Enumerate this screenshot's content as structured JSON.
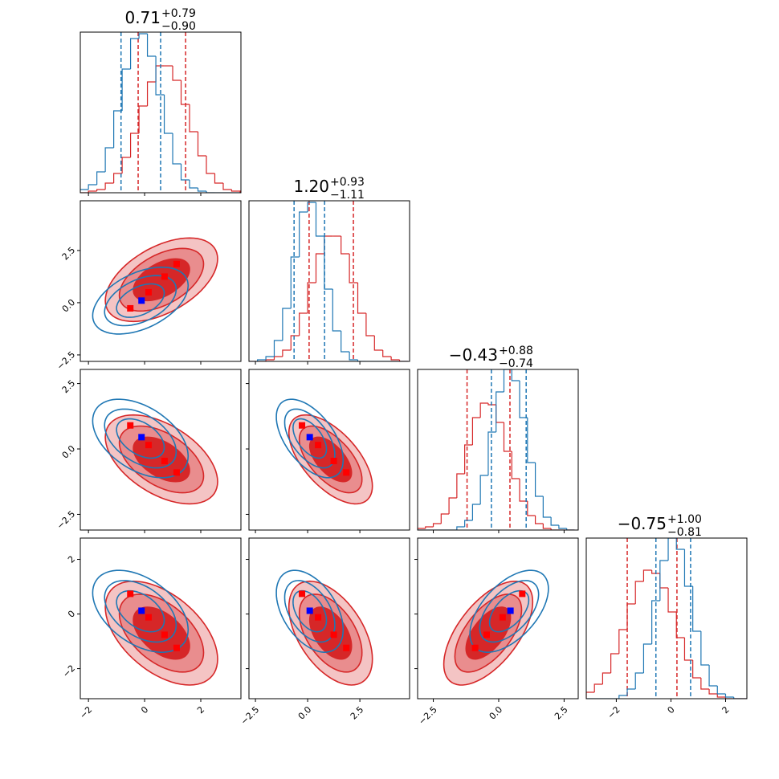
{
  "chart_data": {
    "type": "corner",
    "params": [
      {
        "title": {
          "value": "0.71",
          "plus": "+0.79",
          "minus": "−0.90"
        },
        "lim": [
          -2.29,
          3.43
        ],
        "ticks": [
          {
            "value": -2,
            "label": "−2"
          },
          0,
          2
        ],
        "bins": [
          -2.3,
          -2.0,
          -1.7,
          -1.4,
          -1.1,
          -0.8,
          -0.5,
          -0.2,
          0.1,
          0.4,
          0.7,
          1.0,
          1.3,
          1.6,
          1.9,
          2.2,
          2.5,
          2.8,
          3.1,
          3.4
        ]
      },
      {
        "title": {
          "value": "1.20",
          "plus": "+0.93",
          "minus": "−1.11"
        },
        "lim": [
          -2.81,
          4.88
        ],
        "ticks": [
          {
            "value": -2.5,
            "label": "−2.5"
          },
          {
            "value": 0,
            "label": "0.0"
          },
          2.5
        ],
        "bins": [
          -2.8,
          -2.4,
          -2.0,
          -1.6,
          -1.2,
          -0.8,
          -0.4,
          0.0,
          0.4,
          0.8,
          1.2,
          1.6,
          2.0,
          2.4,
          2.8,
          3.2,
          3.6,
          4.0,
          4.4,
          4.8
        ]
      },
      {
        "title": {
          "value": "−0.43",
          "plus": "+0.88",
          "minus": "−0.74"
        },
        "lim": [
          -3.1,
          3.04
        ],
        "ticks": [
          {
            "value": -2.5,
            "label": "−2.5"
          },
          {
            "value": 0,
            "label": "0.0"
          },
          2.5
        ],
        "bins": [
          -3.1,
          -2.8,
          -2.5,
          -2.2,
          -1.9,
          -1.6,
          -1.3,
          -1.0,
          -0.7,
          -0.4,
          -0.1,
          0.2,
          0.5,
          0.8,
          1.1,
          1.4,
          1.7,
          2.0,
          2.3,
          2.6,
          2.9
        ]
      },
      {
        "title": {
          "value": "−0.75",
          "plus": "+1.00",
          "minus": "−0.81"
        },
        "lim": [
          -3.1,
          2.78
        ],
        "ticks": [
          {
            "value": -2,
            "label": "−2"
          },
          0,
          2
        ],
        "bins": [
          -3.1,
          -2.8,
          -2.5,
          -2.2,
          -1.9,
          -1.6,
          -1.3,
          -1.0,
          -0.7,
          -0.4,
          -0.1,
          0.2,
          0.5,
          0.8,
          1.1,
          1.4,
          1.7,
          2.0,
          2.3,
          2.6,
          2.9
        ]
      }
    ],
    "hist_ylim": [
      0,
      100
    ],
    "levels": [
      1,
      1.5,
      2
    ],
    "series": [
      {
        "color": "#d62728",
        "fill": true,
        "hist": [
          [
            0,
            1,
            2,
            6,
            12,
            22,
            37,
            54,
            69,
            79,
            79,
            70,
            55,
            38,
            23,
            12,
            6,
            2,
            1
          ],
          [
            0,
            0,
            1,
            3,
            7,
            16,
            30,
            49,
            67,
            78,
            78,
            67,
            49,
            30,
            16,
            7,
            3,
            1,
            0
          ],
          [
            1,
            2,
            4,
            10,
            20,
            35,
            53,
            70,
            79,
            78,
            67,
            49,
            32,
            18,
            9,
            4,
            1,
            0,
            0,
            0
          ],
          [
            4,
            9,
            16,
            28,
            43,
            59,
            73,
            80,
            78,
            69,
            54,
            38,
            24,
            13,
            6,
            3,
            1,
            0,
            0,
            0
          ]
        ],
        "quantiles": [
          [
            -0.23,
            1.46
          ],
          [
            0.07,
            2.19
          ],
          [
            -1.21,
            0.43
          ],
          [
            -1.6,
            0.22
          ]
        ],
        "mean": [
          0.6,
          1.1,
          -0.4,
          -0.7
        ],
        "sd": [
          1.0,
          1.0,
          0.85,
          0.95
        ],
        "markers": [
          [
            -0.51,
            0.14,
            0.71,
            1.14
          ],
          [
            -0.27,
            0.5,
            1.25,
            1.85
          ],
          [
            0.9,
            0.15,
            -0.46,
            -0.9
          ],
          [
            0.74,
            -0.12,
            -0.76,
            -1.24
          ]
        ]
      },
      {
        "color": "#1f77b4",
        "fill": false,
        "hist": [
          [
            2,
            5,
            13,
            28,
            51,
            77,
            96,
            99,
            85,
            61,
            37,
            18,
            8,
            3,
            1,
            0,
            0,
            0,
            0
          ],
          [
            0,
            1,
            3,
            13,
            33,
            65,
            93,
            99,
            78,
            45,
            19,
            6,
            1,
            0,
            0,
            0,
            0,
            0,
            0
          ],
          [
            0,
            0,
            0,
            0,
            0,
            2,
            6,
            16,
            34,
            61,
            86,
            100,
            93,
            70,
            42,
            21,
            8,
            3,
            1,
            0
          ],
          [
            0,
            0,
            0,
            0,
            2,
            6,
            16,
            34,
            61,
            86,
            100,
            93,
            70,
            42,
            21,
            8,
            3,
            1,
            0,
            0
          ]
        ],
        "quantiles": [
          [
            -0.84,
            0.57
          ],
          [
            -0.65,
            0.81
          ],
          [
            -0.28,
            1.05
          ],
          [
            -0.55,
            0.72
          ]
        ],
        "mean": [
          -0.15,
          0.1,
          0.4,
          0.1
        ],
        "sd": [
          0.85,
          0.8,
          0.75,
          0.75
        ],
        "markers": [
          [
            -0.11
          ],
          [
            0.1
          ],
          [
            0.45
          ],
          [
            0.12
          ]
        ]
      }
    ],
    "pairs": [
      {
        "x": 0,
        "y": 1,
        "corr": [
          0.5,
          0.45
        ]
      },
      {
        "x": 0,
        "y": 2,
        "corr": [
          -0.5,
          -0.45
        ]
      },
      {
        "x": 1,
        "y": 2,
        "corr": [
          -0.6,
          -0.55
        ]
      },
      {
        "x": 0,
        "y": 3,
        "corr": [
          -0.5,
          -0.45
        ]
      },
      {
        "x": 1,
        "y": 3,
        "corr": [
          -0.5,
          -0.45
        ]
      },
      {
        "x": 2,
        "y": 3,
        "corr": [
          0.6,
          0.55
        ]
      }
    ]
  }
}
